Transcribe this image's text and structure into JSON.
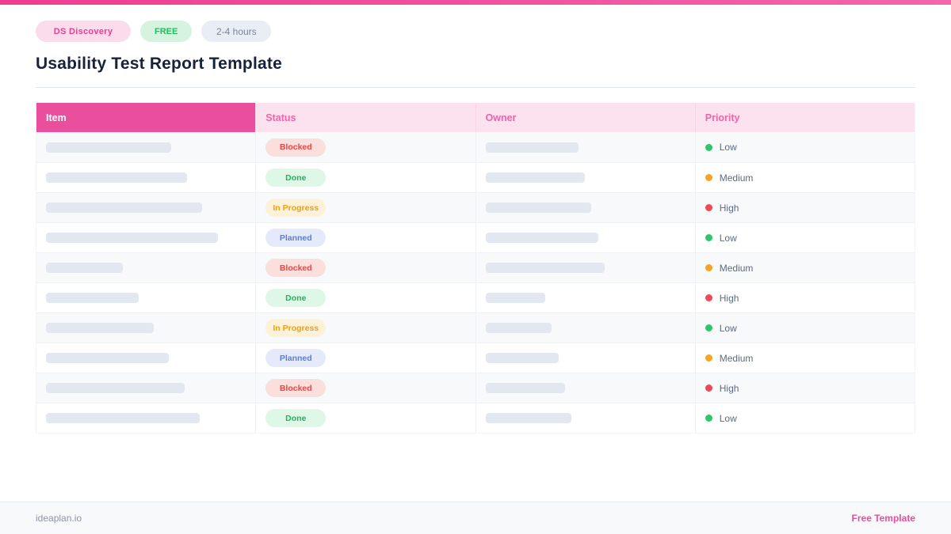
{
  "page": {
    "accent_color": "#ee4c9c",
    "topbar_color": "#f0569f",
    "title": "Usability Test Report Template"
  },
  "badges": [
    {
      "label": "DS  Discovery",
      "bg": "#fbdcec",
      "color": "#ee3d92"
    },
    {
      "label": "FREE",
      "bg": "#d6f3e0",
      "color": "#1fc05f"
    },
    {
      "label": "2-4 hours",
      "bg": "#e9edf4",
      "color": "#7b8698"
    }
  ],
  "table": {
    "columns": [
      "Item",
      "Status",
      "Owner",
      "Priority"
    ],
    "header_colors": {
      "item_bg": "#ea4f9d",
      "item_text": "#ffffff",
      "other_bg": "#fce1ef",
      "other_text": "#ef64ab"
    },
    "status_styles": {
      "Blocked": {
        "bg": "#fbdfdc",
        "color": "#ef4444"
      },
      "Done": {
        "bg": "#def7e6",
        "color": "#22b55f"
      },
      "In Progress": {
        "bg": "#fdf2d7",
        "color": "#f59e0b"
      },
      "Planned": {
        "bg": "#e4eafa",
        "color": "#5b7fd6"
      }
    },
    "priority_styles": {
      "Low": "#2fc56d",
      "Medium": "#f7a325",
      "High": "#ef4856"
    },
    "rows": [
      {
        "item_width": 158,
        "status": "Blocked",
        "owner_width": 117,
        "priority": "Low"
      },
      {
        "item_width": 178,
        "status": "Done",
        "owner_width": 125,
        "priority": "Medium"
      },
      {
        "item_width": 197,
        "status": "In Progress",
        "owner_width": 133,
        "priority": "High"
      },
      {
        "item_width": 217,
        "status": "Planned",
        "owner_width": 142,
        "priority": "Low"
      },
      {
        "item_width": 97,
        "status": "Blocked",
        "owner_width": 150,
        "priority": "Medium"
      },
      {
        "item_width": 117,
        "status": "Done",
        "owner_width": 75,
        "priority": "High"
      },
      {
        "item_width": 136,
        "status": "In Progress",
        "owner_width": 83,
        "priority": "Low"
      },
      {
        "item_width": 155,
        "status": "Planned",
        "owner_width": 92,
        "priority": "Medium"
      },
      {
        "item_width": 175,
        "status": "Blocked",
        "owner_width": 100,
        "priority": "High"
      },
      {
        "item_width": 194,
        "status": "Done",
        "owner_width": 108,
        "priority": "Low"
      }
    ]
  },
  "footer": {
    "left": "ideaplan.io",
    "right": "Free Template"
  }
}
